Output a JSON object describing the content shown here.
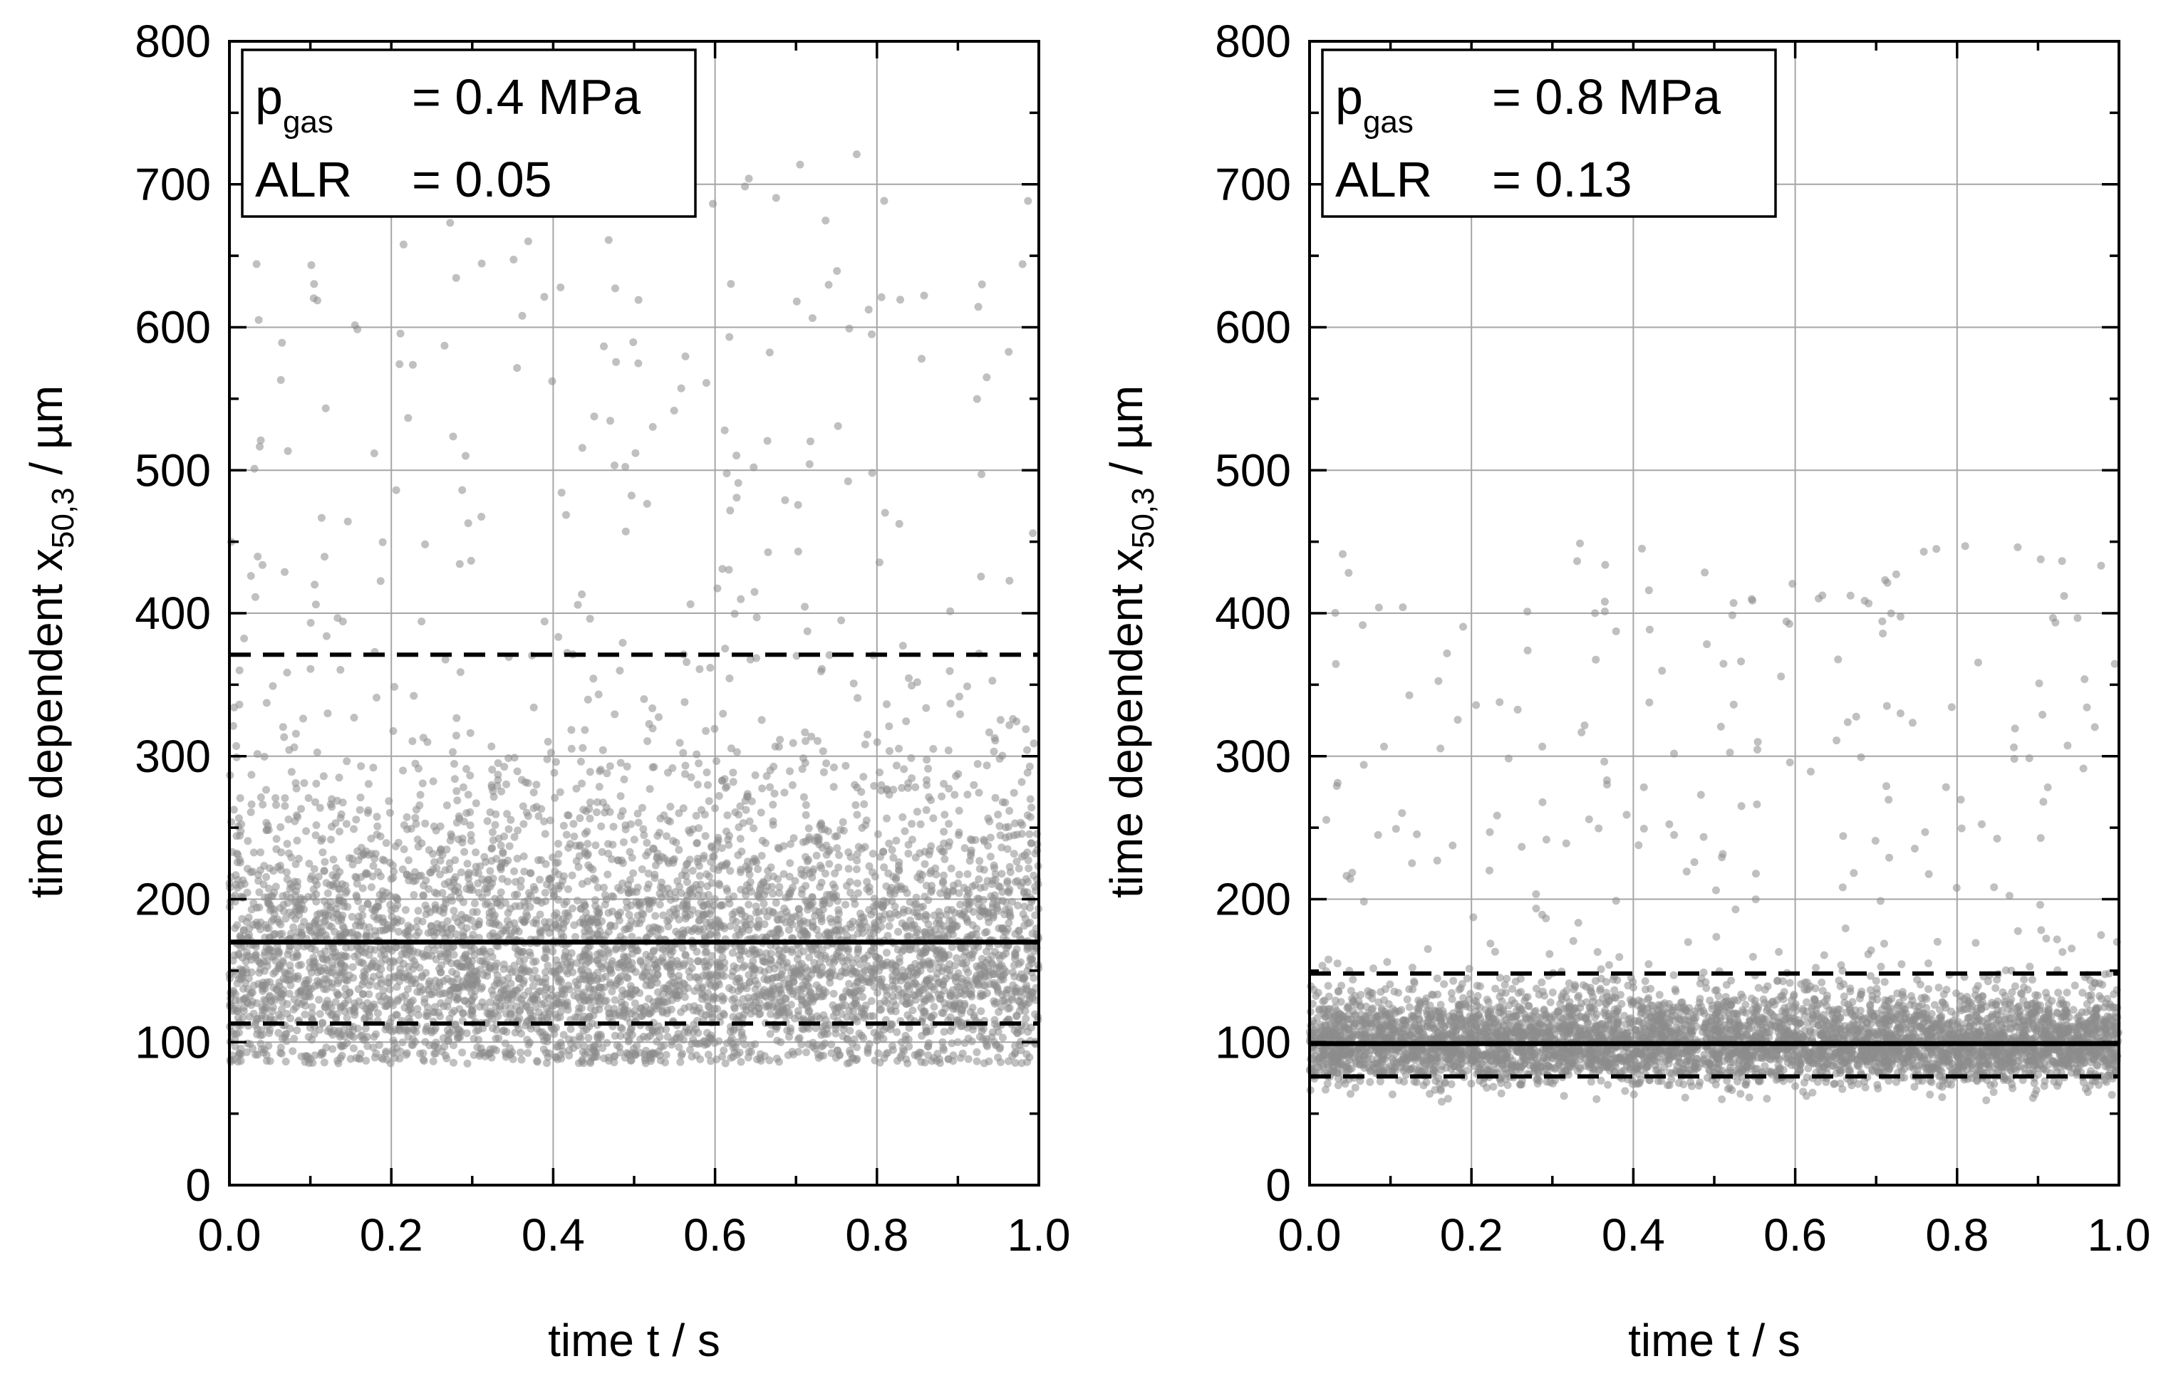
{
  "chart_data": [
    {
      "type": "scatter",
      "title": "",
      "xlabel": "time t / s",
      "ylabel": {
        "prefix": "time dependent x",
        "subscript": "50,3",
        "suffix": " / µm"
      },
      "xlim": [
        0.0,
        1.0
      ],
      "ylim": [
        0,
        800
      ],
      "x_ticks": [
        "0.0",
        "0.2",
        "0.4",
        "0.6",
        "0.8",
        "1.0"
      ],
      "y_ticks": [
        "0",
        "100",
        "200",
        "300",
        "400",
        "500",
        "600",
        "700",
        "800"
      ],
      "grid": true,
      "legend": {
        "position": "top-left",
        "line1": {
          "symbol": "p",
          "subscript": "gas",
          "value": "= 0.4 MPa"
        },
        "line2": {
          "symbol": "ALR",
          "value": "= 0.05"
        }
      },
      "mean_line": 170,
      "dashed_lines": [
        113,
        371
      ],
      "scatter": {
        "n_points": 5200,
        "core_median": 160,
        "core_spread": 0.32,
        "min": 85,
        "outlier_max": 730,
        "seed": 11
      },
      "color": "#8c8c8c"
    },
    {
      "type": "scatter",
      "title": "",
      "xlabel": "time t / s",
      "ylabel": {
        "prefix": "time dependent x",
        "subscript": "50,3",
        "suffix": " / µm"
      },
      "xlim": [
        0.0,
        1.0
      ],
      "ylim": [
        0,
        800
      ],
      "x_ticks": [
        "0.0",
        "0.2",
        "0.4",
        "0.6",
        "0.8",
        "1.0"
      ],
      "y_ticks": [
        "0",
        "100",
        "200",
        "300",
        "400",
        "500",
        "600",
        "700",
        "800"
      ],
      "grid": true,
      "legend": {
        "position": "top-left",
        "line1": {
          "symbol": "p",
          "subscript": "gas",
          "value": "= 0.8 MPa"
        },
        "line2": {
          "symbol": "ALR",
          "value": "= 0.13"
        }
      },
      "mean_line": 99,
      "dashed_lines": [
        76,
        148
      ],
      "scatter": {
        "n_points": 5200,
        "core_median": 100,
        "core_spread": 0.16,
        "min": 58,
        "outlier_max": 450,
        "seed": 23
      },
      "color": "#8c8c8c"
    }
  ]
}
